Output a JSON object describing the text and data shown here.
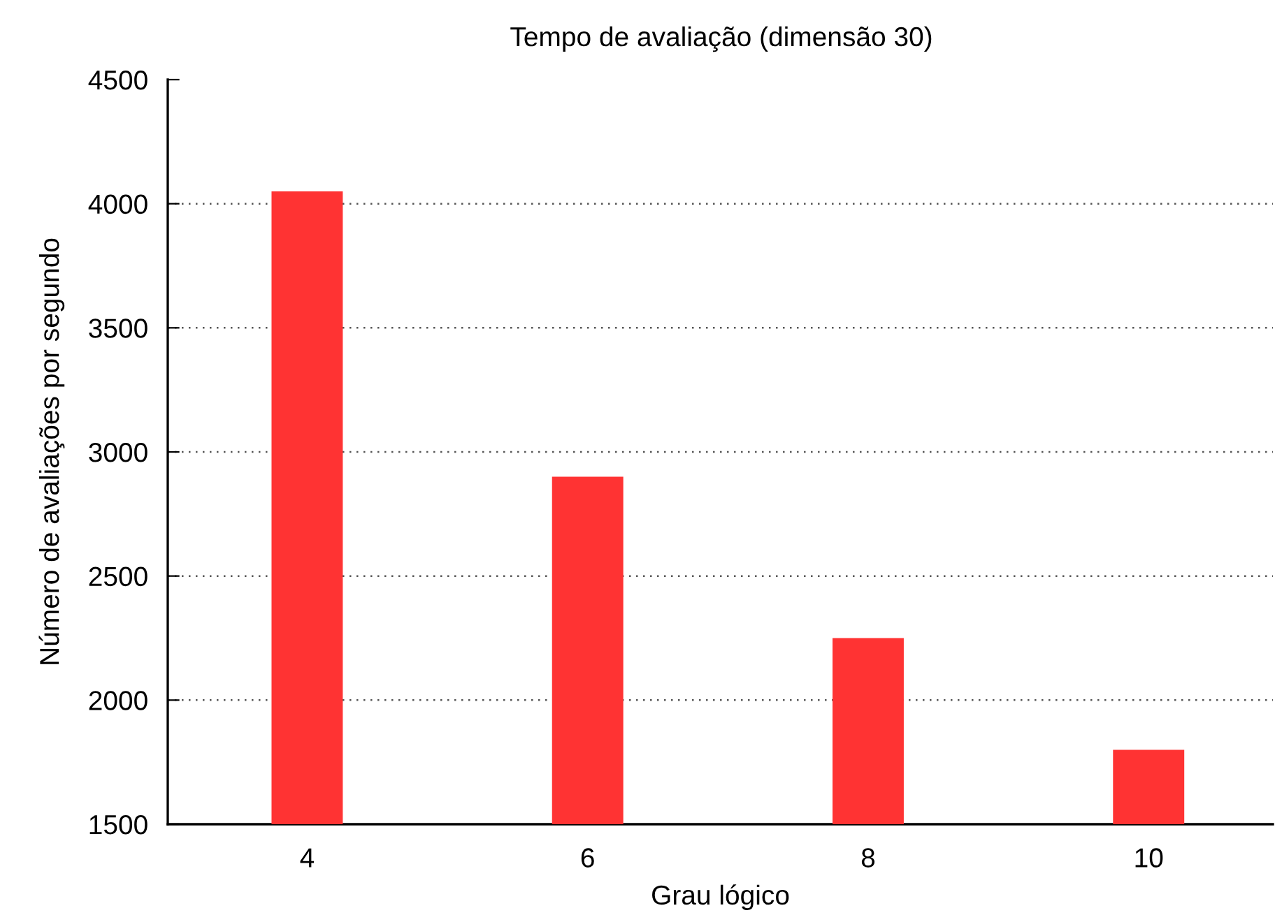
{
  "chart_data": {
    "type": "bar",
    "title": "Tempo de avaliação (dimensão 30)",
    "xlabel": "Grau lógico",
    "ylabel": "Número de avaliações por segundo",
    "categories": [
      "4",
      "6",
      "8",
      "10"
    ],
    "values": [
      4050,
      2900,
      2250,
      1800
    ],
    "color": "#ff3333",
    "ylim": [
      1500,
      4500
    ],
    "yticks": [
      1500,
      2000,
      2500,
      3000,
      3500,
      4000,
      4500
    ],
    "grid": "y"
  }
}
